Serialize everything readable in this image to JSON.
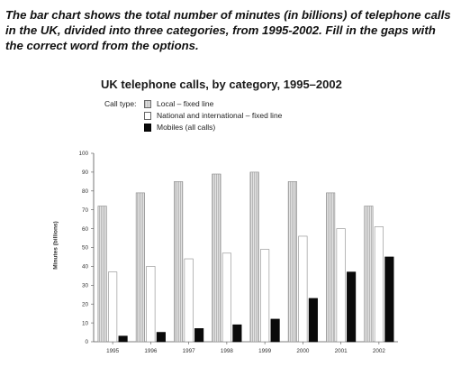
{
  "intro_text": "The bar chart shows the total number of minutes (in billions) of telephone calls in the UK, divided into three categories, from 1995-2002. Fill in the gaps with the correct word from the options.",
  "chart_data": {
    "type": "bar",
    "title": "UK telephone calls, by category, 1995–2002",
    "legend_label": "Call type:",
    "ylabel": "Minutes (billions)",
    "xlabel": "",
    "ylim": [
      0,
      100
    ],
    "yticks": [
      0,
      10,
      20,
      30,
      40,
      50,
      60,
      70,
      80,
      90,
      100
    ],
    "categories": [
      "1995",
      "1996",
      "1997",
      "1998",
      "1999",
      "2000",
      "2001",
      "2002"
    ],
    "series": [
      {
        "name": "Local – fixed line",
        "values": [
          72,
          79,
          85,
          89,
          90,
          85,
          79,
          72
        ],
        "color": "#cfcfcf"
      },
      {
        "name": "National and international – fixed line",
        "values": [
          37,
          40,
          44,
          47,
          49,
          56,
          60,
          61
        ],
        "color": "#ffffff"
      },
      {
        "name": "Mobiles (all calls)",
        "values": [
          3,
          5,
          7,
          9,
          12,
          23,
          37,
          45
        ],
        "color": "#0a0a0a"
      }
    ],
    "grid": false,
    "legend_position": "top-left"
  }
}
